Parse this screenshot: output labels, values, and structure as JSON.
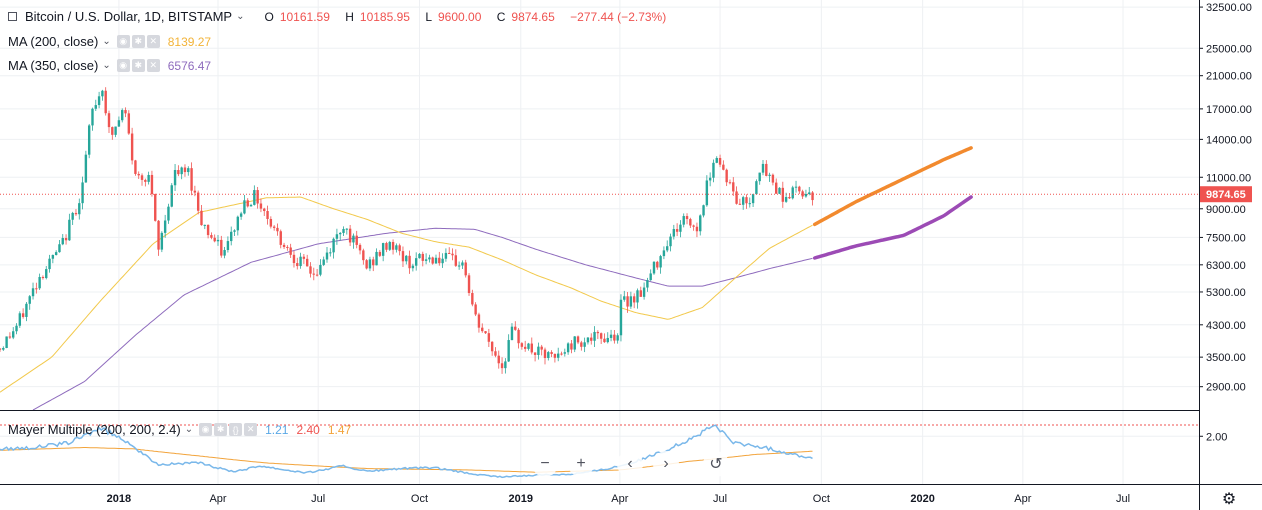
{
  "header": {
    "symbol_title": "Bitcoin / U.S. Dollar, 1D, BITSTAMP",
    "open_label": "O",
    "open": "10161.59",
    "high_label": "H",
    "high": "10185.95",
    "low_label": "L",
    "low": "9600.00",
    "close_label": "C",
    "close": "9874.65",
    "change": "−277.44 (−2.73%)"
  },
  "indicators": [
    {
      "title": "MA (200, close)",
      "value": "8139.27",
      "color": "#f2b338"
    },
    {
      "title": "MA (350, close)",
      "value": "6576.47",
      "color": "#8e6bbd"
    }
  ],
  "sub_indicator": {
    "title": "Mayer Multiple (200, 200, 2.4)",
    "v1": "1.21",
    "v2": "2.40",
    "v3": "1.47",
    "c1": "#5aa8e6",
    "c2": "#ef5350",
    "c3": "#f2a33a"
  },
  "nav_icons": [
    "zoom-out-icon",
    "zoom-in-icon",
    "scroll-left-icon",
    "scroll-right-icon",
    "reset-icon"
  ],
  "nav_glyphs": [
    "−",
    "+",
    "‹",
    "›",
    "↺"
  ],
  "settings_glyph": "⚙",
  "chart_data": {
    "type": "candlestick",
    "main_price_axis": {
      "scale": "log",
      "ylim": [
        2500,
        34000
      ],
      "ticks": [
        "32500.00",
        "25000.00",
        "21000.00",
        "17000.00",
        "14000.00",
        "11000.00",
        "9000.00",
        "7500.00",
        "6300.00",
        "5300.00",
        "4300.00",
        "3500.00",
        "2900.00"
      ],
      "last_price_label": "9874.65",
      "last_price": 9874.65
    },
    "sub_axis": {
      "ticks": [
        "2.00"
      ],
      "levels": {
        "upper": 2.4,
        "tick": 2.0
      },
      "ylim": [
        0.3,
        2.9
      ]
    },
    "time_axis": {
      "labels": [
        "2018",
        "Apr",
        "Jul",
        "Oct",
        "2019",
        "Apr",
        "Jul",
        "Oct",
        "2020",
        "Apr",
        "Jul"
      ],
      "label_dates": [
        "2018-01-01",
        "2018-04-01",
        "2018-07-01",
        "2018-10-01",
        "2019-01-01",
        "2019-04-01",
        "2019-07-01",
        "2019-10-01",
        "2020-01-01",
        "2020-04-01",
        "2020-07-01"
      ]
    },
    "x_range": [
      "2017-09-15",
      "2020-09-08"
    ],
    "price_path": [
      [
        "2017-09-15",
        3700
      ],
      [
        "2017-10-01",
        4300
      ],
      [
        "2017-10-20",
        5800
      ],
      [
        "2017-11-10",
        7100
      ],
      [
        "2017-11-28",
        10000
      ],
      [
        "2017-12-07",
        16500
      ],
      [
        "2017-12-17",
        19600
      ],
      [
        "2017-12-24",
        14000
      ],
      [
        "2018-01-06",
        17000
      ],
      [
        "2018-01-16",
        11000
      ],
      [
        "2018-01-28",
        11200
      ],
      [
        "2018-02-06",
        6900
      ],
      [
        "2018-02-20",
        11200
      ],
      [
        "2018-03-05",
        11400
      ],
      [
        "2018-03-18",
        8200
      ],
      [
        "2018-04-06",
        6700
      ],
      [
        "2018-04-25",
        9400
      ],
      [
        "2018-05-05",
        9800
      ],
      [
        "2018-05-28",
        7400
      ],
      [
        "2018-06-12",
        6500
      ],
      [
        "2018-06-29",
        5900
      ],
      [
        "2018-07-24",
        8200
      ],
      [
        "2018-08-14",
        6200
      ],
      [
        "2018-09-04",
        7300
      ],
      [
        "2018-09-20",
        6400
      ],
      [
        "2018-10-15",
        6600
      ],
      [
        "2018-11-10",
        6350
      ],
      [
        "2018-11-20",
        4500
      ],
      [
        "2018-12-15",
        3300
      ],
      [
        "2018-12-24",
        4100
      ],
      [
        "2019-01-10",
        3650
      ],
      [
        "2019-02-01",
        3450
      ],
      [
        "2019-02-20",
        3900
      ],
      [
        "2019-03-15",
        3950
      ],
      [
        "2019-04-01",
        4100
      ],
      [
        "2019-04-02",
        4900
      ],
      [
        "2019-04-23",
        5400
      ],
      [
        "2019-05-12",
        7200
      ],
      [
        "2019-05-30",
        8500
      ],
      [
        "2019-06-10",
        7900
      ],
      [
        "2019-06-26",
        12900
      ],
      [
        "2019-07-06",
        11200
      ],
      [
        "2019-07-16",
        9400
      ],
      [
        "2019-07-28",
        9500
      ],
      [
        "2019-08-06",
        11800
      ],
      [
        "2019-08-28",
        9700
      ],
      [
        "2019-09-10",
        10200
      ],
      [
        "2019-09-24",
        9874.65
      ]
    ],
    "ma200_path": [
      [
        "2017-09-15",
        2800
      ],
      [
        "2017-11-01",
        3500
      ],
      [
        "2017-12-15",
        5000
      ],
      [
        "2018-02-01",
        7200
      ],
      [
        "2018-03-15",
        8800
      ],
      [
        "2018-05-15",
        9650
      ],
      [
        "2018-06-15",
        9700
      ],
      [
        "2018-07-15",
        9000
      ],
      [
        "2018-08-15",
        8400
      ],
      [
        "2018-09-15",
        7700
      ],
      [
        "2018-10-15",
        7300
      ],
      [
        "2018-11-15",
        7050
      ],
      [
        "2018-12-15",
        6500
      ],
      [
        "2019-01-15",
        5900
      ],
      [
        "2019-02-15",
        5450
      ],
      [
        "2019-03-15",
        5000
      ],
      [
        "2019-04-15",
        4650
      ],
      [
        "2019-05-15",
        4450
      ],
      [
        "2019-06-15",
        4800
      ],
      [
        "2019-07-15",
        5800
      ],
      [
        "2019-08-15",
        7000
      ],
      [
        "2019-09-24",
        8139.27
      ]
    ],
    "ma350_path": [
      [
        "2017-10-15",
        2500
      ],
      [
        "2017-12-01",
        3000
      ],
      [
        "2018-01-15",
        4000
      ],
      [
        "2018-03-01",
        5200
      ],
      [
        "2018-05-01",
        6400
      ],
      [
        "2018-07-01",
        7200
      ],
      [
        "2018-09-01",
        7700
      ],
      [
        "2018-10-15",
        7950
      ],
      [
        "2018-11-20",
        7900
      ],
      [
        "2018-12-15",
        7500
      ],
      [
        "2019-01-15",
        6950
      ],
      [
        "2019-03-01",
        6300
      ],
      [
        "2019-04-15",
        5800
      ],
      [
        "2019-05-15",
        5500
      ],
      [
        "2019-06-15",
        5500
      ],
      [
        "2019-07-15",
        5800
      ],
      [
        "2019-08-15",
        6150
      ],
      [
        "2019-09-24",
        6576.47
      ]
    ],
    "ma200_projection": [
      [
        "2019-09-25",
        8150
      ],
      [
        "2019-11-01",
        9400
      ],
      [
        "2019-12-15",
        10900
      ],
      [
        "2020-01-20",
        12300
      ],
      [
        "2020-02-15",
        13300
      ]
    ],
    "ma350_projection": [
      [
        "2019-09-25",
        6580
      ],
      [
        "2019-11-01",
        7100
      ],
      [
        "2019-12-15",
        7600
      ],
      [
        "2020-01-20",
        8600
      ],
      [
        "2020-02-15",
        9750
      ]
    ],
    "mayer_path": [
      [
        "2017-09-15",
        1.55
      ],
      [
        "2017-10-15",
        1.6
      ],
      [
        "2017-11-15",
        1.75
      ],
      [
        "2017-12-15",
        2.3
      ],
      [
        "2018-01-10",
        1.8
      ],
      [
        "2018-02-06",
        1.0
      ],
      [
        "2018-03-15",
        1.05
      ],
      [
        "2018-04-15",
        0.75
      ],
      [
        "2018-05-10",
        0.95
      ],
      [
        "2018-06-20",
        0.7
      ],
      [
        "2018-07-24",
        0.95
      ],
      [
        "2018-08-14",
        0.75
      ],
      [
        "2018-09-15",
        0.85
      ],
      [
        "2018-10-15",
        0.88
      ],
      [
        "2018-11-25",
        0.62
      ],
      [
        "2018-12-15",
        0.55
      ],
      [
        "2019-01-15",
        0.62
      ],
      [
        "2019-02-15",
        0.65
      ],
      [
        "2019-03-15",
        0.8
      ],
      [
        "2019-04-15",
        1.1
      ],
      [
        "2019-05-15",
        1.55
      ],
      [
        "2019-06-26",
        2.4
      ],
      [
        "2019-07-15",
        1.75
      ],
      [
        "2019-08-10",
        1.6
      ],
      [
        "2019-09-24",
        1.21
      ]
    ],
    "mayer_ma_path": [
      [
        "2017-09-15",
        1.5
      ],
      [
        "2017-12-01",
        1.6
      ],
      [
        "2018-01-15",
        1.55
      ],
      [
        "2018-03-15",
        1.3
      ],
      [
        "2018-05-15",
        1.05
      ],
      [
        "2018-08-15",
        0.85
      ],
      [
        "2018-11-15",
        0.8
      ],
      [
        "2019-01-15",
        0.72
      ],
      [
        "2019-04-01",
        0.8
      ],
      [
        "2019-06-01",
        1.1
      ],
      [
        "2019-08-01",
        1.35
      ],
      [
        "2019-09-24",
        1.47
      ]
    ]
  }
}
